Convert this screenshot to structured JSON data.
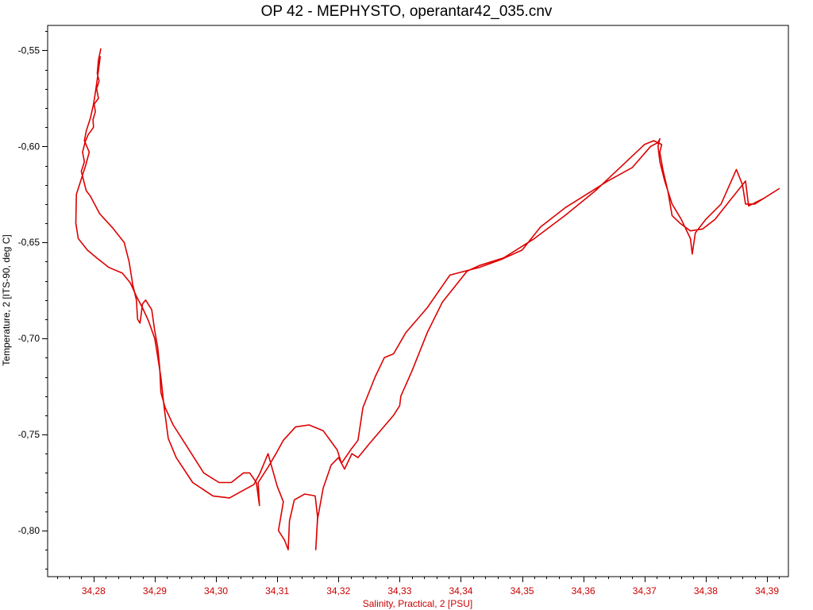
{
  "colors": {
    "series": "#dd0000",
    "x_axis": "#cc0000",
    "y_axis": "#000000",
    "frame": "#000000",
    "background": "#ffffff"
  },
  "chart_data": {
    "type": "line",
    "title": "OP 42 - MEPHYSTO, operantar42_035.cnv",
    "xlabel": "Salinity, Practical, 2 [PSU]",
    "ylabel": "Temperature, 2 [ITS-90, deg C]",
    "xlim": [
      34.2725,
      34.3935
    ],
    "ylim": [
      -0.824,
      -0.537
    ],
    "x_ticks": [
      "34,28",
      "34,29",
      "34,30",
      "34,31",
      "34,32",
      "34,33",
      "34,34",
      "34,35",
      "34,36",
      "34,37",
      "34,38",
      "34,39"
    ],
    "x_tick_values": [
      34.28,
      34.29,
      34.3,
      34.31,
      34.32,
      34.33,
      34.34,
      34.35,
      34.36,
      34.37,
      34.38,
      34.39
    ],
    "y_ticks": [
      "-0,55",
      "-0,60",
      "-0,65",
      "-0,70",
      "-0,75",
      "-0,80"
    ],
    "y_tick_values": [
      -0.55,
      -0.6,
      -0.65,
      -0.7,
      -0.75,
      -0.8
    ],
    "grid": false,
    "series": [
      {
        "points": [
          [
            34.2812,
            -0.549
          ],
          [
            34.2808,
            -0.555
          ],
          [
            34.2806,
            -0.562
          ],
          [
            34.2809,
            -0.566
          ],
          [
            34.2805,
            -0.57
          ],
          [
            34.2808,
            -0.575
          ],
          [
            34.2801,
            -0.578
          ],
          [
            34.2803,
            -0.582
          ],
          [
            34.2799,
            -0.586
          ],
          [
            34.28,
            -0.59
          ],
          [
            34.2791,
            -0.594
          ],
          [
            34.2786,
            -0.598
          ],
          [
            34.2782,
            -0.603
          ],
          [
            34.2785,
            -0.608
          ],
          [
            34.278,
            -0.613
          ],
          [
            34.2784,
            -0.618
          ],
          [
            34.2788,
            -0.623
          ],
          [
            34.2795,
            -0.626
          ],
          [
            34.28,
            -0.629
          ],
          [
            34.281,
            -0.635
          ],
          [
            34.283,
            -0.642
          ],
          [
            34.285,
            -0.65
          ],
          [
            34.2858,
            -0.66
          ],
          [
            34.2864,
            -0.672
          ],
          [
            34.287,
            -0.68
          ],
          [
            34.2872,
            -0.69
          ],
          [
            34.2876,
            -0.692
          ],
          [
            34.288,
            -0.682
          ],
          [
            34.2885,
            -0.68
          ],
          [
            34.2895,
            -0.685
          ],
          [
            34.29,
            -0.696
          ],
          [
            34.2905,
            -0.705
          ],
          [
            34.2908,
            -0.715
          ],
          [
            34.291,
            -0.728
          ],
          [
            34.2917,
            -0.736
          ],
          [
            34.293,
            -0.745
          ],
          [
            34.295,
            -0.755
          ],
          [
            34.298,
            -0.77
          ],
          [
            34.3005,
            -0.775
          ],
          [
            34.3025,
            -0.775
          ],
          [
            34.3045,
            -0.77
          ],
          [
            34.3055,
            -0.77
          ],
          [
            34.3066,
            -0.775
          ],
          [
            34.3071,
            -0.787
          ],
          [
            34.3069,
            -0.775
          ],
          [
            34.3085,
            -0.767
          ],
          [
            34.3098,
            -0.76
          ],
          [
            34.311,
            -0.753
          ],
          [
            34.313,
            -0.746
          ],
          [
            34.3152,
            -0.745
          ],
          [
            34.3175,
            -0.748
          ],
          [
            34.3198,
            -0.758
          ],
          [
            34.3205,
            -0.765
          ],
          [
            34.322,
            -0.758
          ],
          [
            34.3232,
            -0.753
          ],
          [
            34.324,
            -0.736
          ],
          [
            34.326,
            -0.72
          ],
          [
            34.3275,
            -0.71
          ],
          [
            34.329,
            -0.708
          ],
          [
            34.331,
            -0.697
          ],
          [
            34.3345,
            -0.684
          ],
          [
            34.3382,
            -0.667
          ],
          [
            34.343,
            -0.663
          ],
          [
            34.3465,
            -0.659
          ],
          [
            34.35,
            -0.654
          ],
          [
            34.353,
            -0.642
          ],
          [
            34.357,
            -0.632
          ],
          [
            34.361,
            -0.624
          ],
          [
            34.364,
            -0.618
          ],
          [
            34.368,
            -0.611
          ],
          [
            34.371,
            -0.6
          ],
          [
            34.3722,
            -0.598
          ],
          [
            34.3725,
            -0.596
          ],
          [
            34.3722,
            -0.6
          ],
          [
            34.3725,
            -0.608
          ],
          [
            34.3733,
            -0.618
          ],
          [
            34.3745,
            -0.63
          ],
          [
            34.376,
            -0.638
          ],
          [
            34.3775,
            -0.648
          ],
          [
            34.3778,
            -0.656
          ],
          [
            34.3783,
            -0.645
          ],
          [
            34.38,
            -0.638
          ],
          [
            34.3825,
            -0.63
          ],
          [
            34.385,
            -0.612
          ],
          [
            34.386,
            -0.62
          ],
          [
            34.3865,
            -0.63
          ],
          [
            34.388,
            -0.63
          ],
          [
            34.3895,
            -0.627
          ],
          [
            34.392,
            -0.622
          ],
          [
            34.3895,
            -0.627
          ],
          [
            34.387,
            -0.631
          ],
          [
            34.3865,
            -0.618
          ],
          [
            34.384,
            -0.628
          ],
          [
            34.3815,
            -0.638
          ],
          [
            34.3795,
            -0.643
          ],
          [
            34.3775,
            -0.644
          ],
          [
            34.3758,
            -0.64
          ],
          [
            34.3745,
            -0.636
          ],
          [
            34.3738,
            -0.623
          ],
          [
            34.373,
            -0.612
          ],
          [
            34.3725,
            -0.603
          ],
          [
            34.3728,
            -0.599
          ],
          [
            34.3715,
            -0.597
          ],
          [
            34.37,
            -0.599
          ],
          [
            34.367,
            -0.608
          ],
          [
            34.362,
            -0.623
          ],
          [
            34.357,
            -0.636
          ],
          [
            34.352,
            -0.648
          ],
          [
            34.347,
            -0.658
          ],
          [
            34.343,
            -0.662
          ],
          [
            34.341,
            -0.665
          ],
          [
            34.339,
            -0.673
          ],
          [
            34.337,
            -0.681
          ],
          [
            34.3345,
            -0.697
          ],
          [
            34.332,
            -0.717
          ],
          [
            34.3302,
            -0.73
          ],
          [
            34.33,
            -0.735
          ],
          [
            34.329,
            -0.74
          ],
          [
            34.325,
            -0.755
          ],
          [
            34.3232,
            -0.762
          ],
          [
            34.3222,
            -0.76
          ],
          [
            34.321,
            -0.768
          ],
          [
            34.32,
            -0.762
          ],
          [
            34.3188,
            -0.766
          ],
          [
            34.3175,
            -0.778
          ],
          [
            34.3166,
            -0.794
          ],
          [
            34.3163,
            -0.81
          ],
          [
            34.3166,
            -0.793
          ],
          [
            34.3162,
            -0.782
          ],
          [
            34.3145,
            -0.781
          ],
          [
            34.3128,
            -0.784
          ],
          [
            34.312,
            -0.795
          ],
          [
            34.3118,
            -0.81
          ],
          [
            34.3112,
            -0.805
          ],
          [
            34.3102,
            -0.8
          ],
          [
            34.311,
            -0.785
          ],
          [
            34.31,
            -0.777
          ],
          [
            34.3085,
            -0.76
          ],
          [
            34.3072,
            -0.77
          ],
          [
            34.3062,
            -0.776
          ],
          [
            34.3045,
            -0.779
          ],
          [
            34.3022,
            -0.783
          ],
          [
            34.2995,
            -0.782
          ],
          [
            34.2962,
            -0.775
          ],
          [
            34.2935,
            -0.762
          ],
          [
            34.2922,
            -0.752
          ],
          [
            34.2915,
            -0.735
          ],
          [
            34.291,
            -0.72
          ],
          [
            34.2905,
            -0.71
          ],
          [
            34.29,
            -0.7
          ],
          [
            34.289,
            -0.691
          ],
          [
            34.288,
            -0.684
          ],
          [
            34.287,
            -0.678
          ],
          [
            34.286,
            -0.671
          ],
          [
            34.2847,
            -0.666
          ],
          [
            34.2825,
            -0.663
          ],
          [
            34.2805,
            -0.658
          ],
          [
            34.279,
            -0.654
          ],
          [
            34.2775,
            -0.648
          ],
          [
            34.2771,
            -0.64
          ],
          [
            34.2772,
            -0.625
          ],
          [
            34.2779,
            -0.618
          ],
          [
            34.2787,
            -0.61
          ],
          [
            34.2793,
            -0.603
          ],
          [
            34.2785,
            -0.597
          ],
          [
            34.2788,
            -0.592
          ],
          [
            34.2795,
            -0.585
          ],
          [
            34.28,
            -0.578
          ],
          [
            34.2803,
            -0.572
          ],
          [
            34.2806,
            -0.565
          ],
          [
            34.2809,
            -0.558
          ],
          [
            34.2811,
            -0.553
          ]
        ]
      }
    ]
  }
}
